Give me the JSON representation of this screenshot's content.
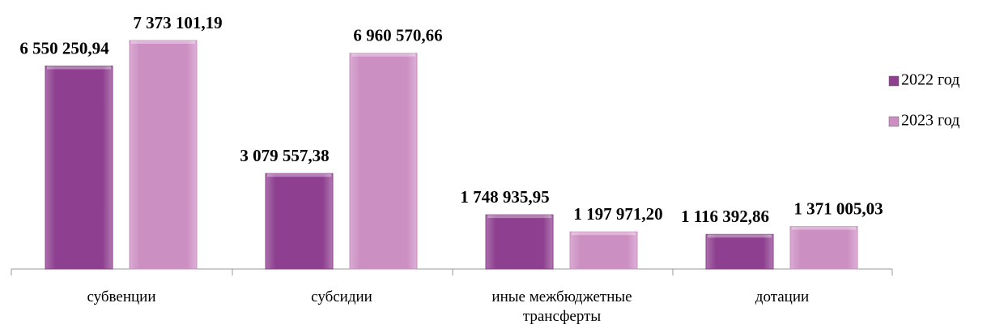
{
  "chart_data": {
    "type": "bar",
    "categories": [
      "субвенции",
      "субсидии",
      "иные межбюджетные трансферты",
      "дотации"
    ],
    "series": [
      {
        "name": "2022 год",
        "color": "#8e3f8f",
        "values": [
          6550250.94,
          3079557.38,
          1748935.95,
          1116392.86
        ],
        "value_labels": [
          "6 550 250,94",
          "3 079 557,38",
          "1 748 935,95",
          "1 116 392,86"
        ]
      },
      {
        "name": "2023 год",
        "color": "#cc8fc2",
        "values": [
          7373101.19,
          6960570.66,
          1197971.2,
          1371005.03
        ],
        "value_labels": [
          "7 373 101,19",
          "6 960 570,66",
          "1 197 971,20",
          "1 371 005,03"
        ]
      }
    ],
    "legend": "right"
  }
}
